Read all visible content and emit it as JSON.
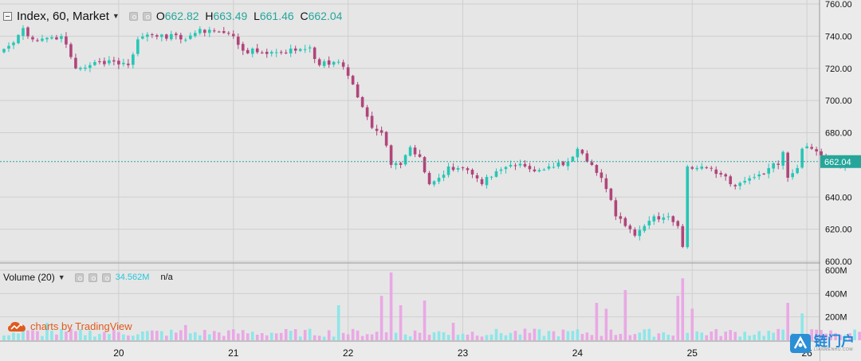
{
  "colors": {
    "up": "#26c6b6",
    "down": "#b0457a",
    "volume_up": "#8ee6e8",
    "volume_down": "#e9a8e4",
    "background": "#e6e6e6",
    "grid": "#cfcfcf",
    "price_line": "#27a69a",
    "price_badge": "#26a69a",
    "branding": "#e05a1e",
    "watermark": "#1f87d6"
  },
  "legend": {
    "symbol": "Index, 60, Market",
    "open_label": "O",
    "open": "662.82",
    "high_label": "H",
    "high": "663.49",
    "low_label": "L",
    "low": "661.46",
    "close_label": "C",
    "close": "662.04"
  },
  "volume_legend": {
    "title": "Volume (20)",
    "value": "34.562M",
    "ma_value": "n/a"
  },
  "branding": {
    "text": "charts by TradingView",
    "icon": "tradingview-cloud-icon"
  },
  "watermark": {
    "text": "链门户",
    "subtext": "LIANMENHU.COM",
    "icon": "lianmenhu-logo-icon"
  },
  "price_badge": "662.04",
  "chart_data": [
    {
      "type": "candlestick",
      "title": "Index, 60, Market",
      "ylim": [
        600,
        760
      ],
      "y_ticks": [
        "760.00",
        "740.00",
        "720.00",
        "700.00",
        "680.00",
        "662.04",
        "640.00",
        "620.00",
        "600.00"
      ],
      "y_tick_values": [
        760,
        740,
        720,
        700,
        680,
        662.04,
        640,
        620,
        600
      ],
      "x_ticks": [
        "20",
        "21",
        "22",
        "23",
        "24",
        "25",
        "26"
      ],
      "x_tick_hours": [
        24,
        48,
        72,
        96,
        120,
        144,
        168
      ],
      "price_line": 662.04,
      "grid": true,
      "anchors": [
        [
          0,
          732
        ],
        [
          2,
          736
        ],
        [
          4,
          745
        ],
        [
          6,
          738
        ],
        [
          9,
          739
        ],
        [
          12,
          740
        ],
        [
          15,
          720
        ],
        [
          18,
          722
        ],
        [
          22,
          725
        ],
        [
          26,
          722
        ],
        [
          28,
          738
        ],
        [
          30,
          741
        ],
        [
          33,
          741
        ],
        [
          37,
          738
        ],
        [
          40,
          742
        ],
        [
          43,
          744
        ],
        [
          46,
          742
        ],
        [
          48,
          740
        ],
        [
          50,
          731
        ],
        [
          53,
          730
        ],
        [
          57,
          730
        ],
        [
          62,
          732
        ],
        [
          64,
          733
        ],
        [
          66,
          722
        ],
        [
          69,
          724
        ],
        [
          71,
          721
        ],
        [
          73,
          710
        ],
        [
          75,
          696
        ],
        [
          77,
          683
        ],
        [
          79,
          680
        ],
        [
          80,
          672
        ],
        [
          81,
          660
        ],
        [
          83,
          660
        ],
        [
          85,
          671
        ],
        [
          87,
          665
        ],
        [
          89,
          648
        ],
        [
          91,
          652
        ],
        [
          93,
          659
        ],
        [
          96,
          658
        ],
        [
          98,
          654
        ],
        [
          100,
          648
        ],
        [
          103,
          656
        ],
        [
          106,
          660
        ],
        [
          109,
          659
        ],
        [
          111,
          656
        ],
        [
          114,
          659
        ],
        [
          118,
          662
        ],
        [
          120,
          670
        ],
        [
          122,
          662
        ],
        [
          124,
          655
        ],
        [
          126,
          645
        ],
        [
          128,
          628
        ],
        [
          130,
          622
        ],
        [
          132,
          616
        ],
        [
          134,
          622
        ],
        [
          136,
          628
        ],
        [
          139,
          628
        ],
        [
          141,
          622
        ],
        [
          142,
          609
        ],
        [
          143,
          659
        ],
        [
          147,
          658
        ],
        [
          150,
          654
        ],
        [
          152,
          648
        ],
        [
          155,
          650
        ],
        [
          158,
          654
        ],
        [
          160,
          658
        ],
        [
          162,
          660
        ],
        [
          163,
          668
        ],
        [
          164,
          652
        ],
        [
          166,
          658
        ],
        [
          167,
          670
        ],
        [
          169,
          670
        ],
        [
          171,
          666
        ],
        [
          173,
          663
        ],
        [
          175,
          659
        ],
        [
          177,
          661
        ],
        [
          180,
          662.04
        ]
      ],
      "volume_ylim": [
        0,
        600000000
      ],
      "volume_ticks": [
        "600M",
        "400M",
        "200M"
      ],
      "volume_tick_values": [
        600000000,
        400000000,
        200000000
      ],
      "volume_baseline": 50000000,
      "volume_spikes": [
        [
          9,
          150000000
        ],
        [
          38,
          130000000
        ],
        [
          70,
          300000000
        ],
        [
          79,
          380000000
        ],
        [
          81,
          580000000
        ],
        [
          83,
          300000000
        ],
        [
          88,
          340000000
        ],
        [
          94,
          150000000
        ],
        [
          124,
          320000000
        ],
        [
          126,
          270000000
        ],
        [
          130,
          430000000
        ],
        [
          141,
          380000000
        ],
        [
          142,
          530000000
        ],
        [
          144,
          270000000
        ],
        [
          164,
          320000000
        ],
        [
          167,
          230000000
        ]
      ]
    }
  ]
}
